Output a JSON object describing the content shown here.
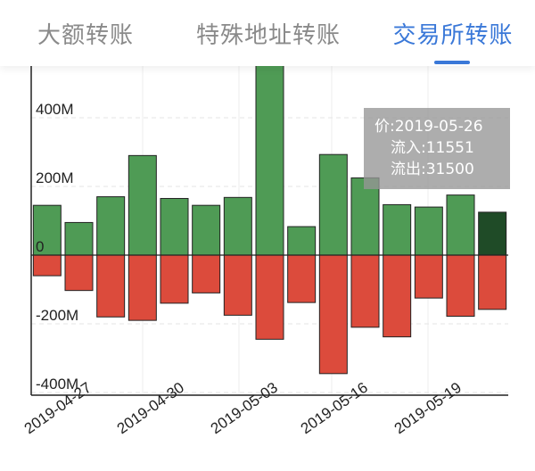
{
  "tabs": [
    {
      "label": "大额转账"
    },
    {
      "label": "特殊地址转账"
    },
    {
      "label": "交易所转账",
      "active": true
    }
  ],
  "colors": {
    "inflow": "#4f9b55",
    "inflow_highlight": "#1f4b27",
    "outflow": "#dc4b3c",
    "accent": "#3a78d8",
    "tooltip_bg": "#969696"
  },
  "tooltip": {
    "line1": "价:2019-05-26",
    "line2": "流入:11551",
    "line3": "流出:31500"
  },
  "chart_data": {
    "type": "bar",
    "stacked": true,
    "y_tick_labels": [
      "400M",
      "200M",
      "0",
      "-200M",
      "-400M"
    ],
    "x_tick_labels": [
      "2019-04-27",
      "2019-04-30",
      "2019-05-03",
      "2019-05-16",
      "2019-05-19"
    ],
    "ylim": [
      -400,
      600
    ],
    "y_unit": "M",
    "grid": true,
    "series": [
      {
        "values": [
          145,
          95,
          170,
          290,
          165,
          145,
          168,
          590,
          83,
          293,
          225,
          147,
          140,
          175,
          125
        ]
      },
      {
        "values": [
          -60,
          -103,
          -180,
          -190,
          -140,
          -110,
          -175,
          -245,
          -138,
          -345,
          -210,
          -238,
          -125,
          -178,
          -158
        ]
      }
    ],
    "highlight_index": 14
  }
}
